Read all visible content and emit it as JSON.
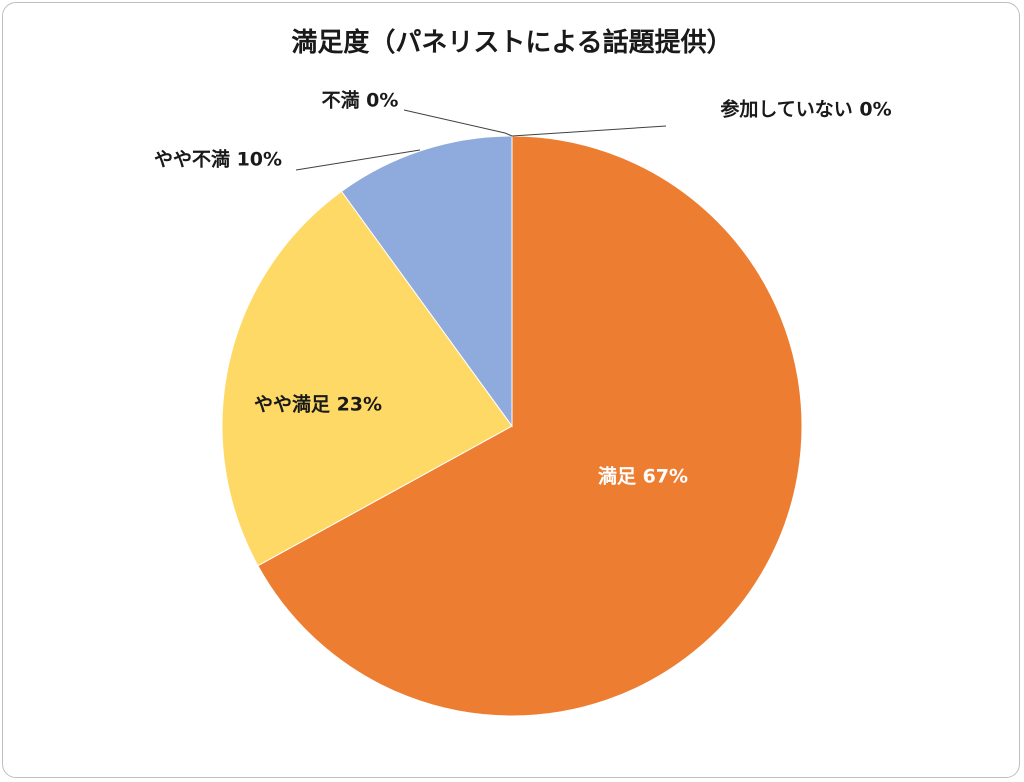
{
  "chart_data": {
    "type": "pie",
    "title": "満足度（パネリストによる話題提供）",
    "slices": [
      {
        "label": "満足 67%",
        "value": 67,
        "color": "#ED7D31",
        "label_color": "#ffffff"
      },
      {
        "label": "やや満足 23%",
        "value": 23,
        "color": "#FFD966",
        "label_color": "#1a1a1a"
      },
      {
        "label": "やや不満 10%",
        "value": 10,
        "color": "#8FAADC",
        "label_color": "#1a1a1a"
      },
      {
        "label": "不満 0%",
        "value": 0,
        "color": "#A5A5A5",
        "label_color": "#1a1a1a"
      },
      {
        "label": "参加していない 0%",
        "value": 0,
        "color": "#4472C4",
        "label_color": "#1a1a1a"
      }
    ]
  }
}
